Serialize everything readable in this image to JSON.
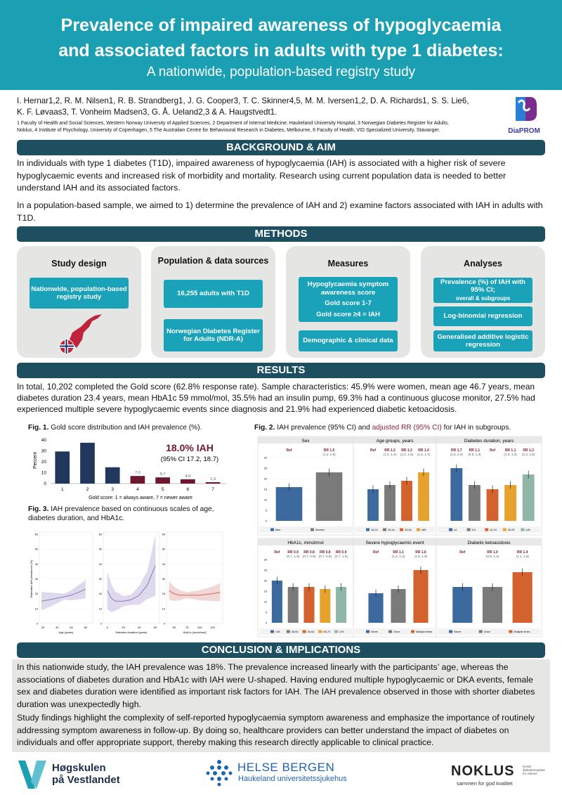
{
  "header": {
    "title_line1": "Prevalence of impaired awareness of hypoglycaemia",
    "title_line2": "and associated factors in adults with type 1 diabetes:",
    "subtitle": "A nationwide, population-based registry study"
  },
  "authors": {
    "line1": "I. Hernar1,2, R. M. Nilsen1, R. B. Strandberg1, J. G. Cooper3, T. C. Skinner4,5, M. M. Iversen1,2, D. A. Richards1, S. S. Lie6,",
    "line2": "K. F. Løvaas3, T. Vonheim Madsen3, G. Å. Ueland2,3 & A. Haugstvedt1."
  },
  "affiliations": {
    "line1": "1 Faculty of Health and Social Sciences, Western Norway University of Applied Sciences, 2 Department of Internal Medicine, Haukeland University Hospital, 3 Norwegian Diabetes Register for Adults,",
    "line2": "Noklus, 4 Institute of Psychology, University of Copenhagen, 5 The Australian Centre for Behavioural Research in Diabetes, Melbourne, 6 Faculty of Health, VID Specialized University, Stavanger."
  },
  "logo": {
    "diaprom": "DiaPROM"
  },
  "background": {
    "title": "BACKGROUND & AIM",
    "p1": "In individuals with type 1 diabetes (T1D), impaired awareness of hypoglycaemia (IAH) is associated with a higher risk of severe hypoglycaemic events and increased risk of morbidity and mortality. Research using current population data is needed to better understand IAH and its associated factors.",
    "p2": "In a population-based sample, we aimed to 1) determine the prevalence of IAH and 2) examine factors associated with IAH in adults with T1D."
  },
  "methods": {
    "title": "METHODS",
    "design": {
      "title": "Study design",
      "box": "Nationwide, population-based registry study"
    },
    "population": {
      "title": "Population & data sources",
      "box1": "16,255 adults with T1D",
      "box2": "Norwegian Diabetes Register for Adults (NDR-A)"
    },
    "measures": {
      "title": "Measures",
      "b1a": "Hypoglycaemia symptom awareness score",
      "b1b": "Gold score 1-7",
      "b1c": "Gold score ≥4 = IAH",
      "b2": "Demographic & clinical data"
    },
    "analyses": {
      "title": "Analyses",
      "b1": "Prevalence (%) of IAH with 95% CI;",
      "b1s": "overall & subgroups",
      "b2": "Log-binomial regression",
      "b3": "Generalised additive logistic regression"
    }
  },
  "results": {
    "title": "RESULTS",
    "text": "In total, 10,202 completed the Gold score (62.8% response rate). Sample characteristics: 45.9% were women, mean age 46.7 years, mean diabetes duration 23.4 years, mean HbA1c 59 mmol/mol, 35.5% had an insulin pump, 69.3% had a continuous glucose monitor, 27.5% had experienced multiple severe hypoglycaemic events since diagnosis and 21.9% had experienced diabetic ketoacidosis."
  },
  "fig1": {
    "caption_bold": "Fig. 1.",
    "caption": "Gold score distribution and IAH prevalence (%).",
    "headline": "18.0% IAH",
    "ci": "(95% CI 17.2, 18.7)",
    "xlabel": "Gold score: 1 = always aware, 7 = newer aware",
    "ylabel": "Percent"
  },
  "fig2": {
    "caption_bold": "Fig. 2.",
    "caption": "IAH prevalence (95% CI) and",
    "caption_red": "adjusted RR (95% CI)",
    "caption_end": "for IAH in subgroups."
  },
  "fig3": {
    "caption_bold": "Fig. 3.",
    "caption": "IAH prevalence based on continuous scales of age, diabetes duration, and HbA1c."
  },
  "chart_data": [
    {
      "type": "bar",
      "title": "Gold score distribution",
      "categories": [
        "1",
        "2",
        "3",
        "4",
        "5",
        "6",
        "7"
      ],
      "values": [
        29.5,
        37.5,
        15,
        7.0,
        5.7,
        4.0,
        1.3
      ],
      "labels": [
        "",
        "",
        "",
        "7.0",
        "5.7",
        "4.0",
        "1.3"
      ],
      "ylim": [
        0,
        40
      ],
      "yticks": [
        "0",
        "10",
        "20",
        "30",
        "40"
      ],
      "colors": [
        "#22375e",
        "#22375e",
        "#22375e",
        "#6e1830",
        "#6e1830",
        "#6e1830",
        "#6e1830"
      ]
    },
    {
      "type": "bar",
      "title": "Sex",
      "categories": [
        "Men",
        "Women"
      ],
      "values": [
        16,
        23
      ],
      "rr": [
        "Ref",
        "RR 1.5"
      ],
      "ci": [
        "",
        "(1.4, 1.6)"
      ],
      "colors": [
        "#3d6a9e",
        "#7a7a7a"
      ]
    },
    {
      "type": "bar",
      "title": "Age groups, years",
      "categories": [
        "18-24",
        "25-44",
        "45-64",
        "≥65"
      ],
      "values": [
        15,
        17,
        19,
        23
      ],
      "rr": [
        "Ref",
        "RR 1.2",
        "RR 1.2",
        "RR 1.4"
      ],
      "ci": [
        "",
        "(1.0, 1.4)",
        "(1.0, 1.5)",
        "(1.2, 1.7)"
      ],
      "colors": [
        "#3d6a9e",
        "#7a7a7a",
        "#d3622e",
        "#e6a22c"
      ]
    },
    {
      "type": "bar",
      "title": "Diabetes duration, years",
      "categories": [
        "≤4",
        "5-9",
        "10-19",
        "20-29",
        "≥30"
      ],
      "values": [
        25,
        17,
        15,
        17,
        22
      ],
      "rr": [
        "RR 1.7",
        "RR 1.1",
        "Ref",
        "RR 1.1",
        "RR 1.3"
      ],
      "ci": [
        "(1.5, 2.0)",
        "(0.9, 1.3)",
        "",
        "(1.0, 1.3)",
        "(1.2, 1.5)"
      ],
      "colors": [
        "#3d6a9e",
        "#7a7a7a",
        "#d3622e",
        "#e6a22c",
        "#8fb6a8"
      ]
    },
    {
      "type": "bar",
      "title": "HbA1c, mmol/mol",
      "categories": [
        "<48",
        "48-53",
        "54-64",
        "65-74",
        "≥75"
      ],
      "values": [
        20,
        17,
        17,
        16,
        17
      ],
      "rr": [
        "Ref",
        "RR 0.9",
        "RR 0.8",
        "RR 0.8",
        "RR 0.9"
      ],
      "ci": [
        "",
        "(0.7, 1.0)",
        "(0.7, 0.9)",
        "(0.7, 0.9)",
        "(0.7, 1.0)"
      ],
      "colors": [
        "#3d6a9e",
        "#7a7a7a",
        "#d3622e",
        "#e6a22c",
        "#8fb6a8"
      ]
    },
    {
      "type": "bar",
      "title": "Severe hypoglycaemic event",
      "categories": [
        "Never",
        "Once",
        "Multiple times"
      ],
      "values": [
        14,
        16,
        25
      ],
      "rr": [
        "Ref",
        "RR 1.1",
        "RR 1.6"
      ],
      "ci": [
        "",
        "(1.0, 1.3)",
        "(1.5, 1.8)"
      ],
      "colors": [
        "#3d6a9e",
        "#7a7a7a",
        "#d3622e"
      ]
    },
    {
      "type": "bar",
      "title": "Diabetic ketoacidosis",
      "categories": [
        "Never",
        "Once",
        "Multiple times"
      ],
      "values": [
        17,
        17,
        24
      ],
      "rr": [
        "Ref",
        "RR 1.0",
        "RR 1.4"
      ],
      "ci": [
        "",
        "(0.9, 1.1)",
        "(1.1, 1.6)"
      ],
      "colors": [
        "#3d6a9e",
        "#7a7a7a",
        "#d3622e"
      ]
    },
    {
      "type": "line",
      "title": "Age (years)",
      "x": [
        18,
        30,
        40,
        50,
        60,
        70,
        80
      ],
      "y": [
        15,
        16,
        17,
        18,
        19,
        21,
        23
      ],
      "xticks": [
        "20",
        "40",
        "60",
        "80"
      ],
      "yticks": [
        "0",
        "10",
        "20",
        "30",
        "40",
        "50",
        "60"
      ],
      "ylabel": "Estimated IAH prevalence (%)"
    },
    {
      "type": "line",
      "title": "Diabetes duration (years)",
      "x": [
        0,
        5,
        10,
        20,
        30,
        40,
        50,
        60
      ],
      "y": [
        22,
        17,
        15,
        15,
        16,
        19,
        26,
        39
      ],
      "xticks": [
        "0",
        "20",
        "40",
        "60"
      ]
    },
    {
      "type": "line",
      "title": "HbA1c (mmol/mol)",
      "x": [
        40,
        50,
        60,
        75,
        100,
        125,
        140
      ],
      "y": [
        22,
        20,
        19,
        19,
        19,
        20,
        21
      ],
      "xticks": [
        "50",
        "75",
        "100",
        "125"
      ]
    }
  ],
  "conclusion": {
    "title": "CONCLUSION & IMPLICATIONS",
    "p1": "In this nationwide study, the IAH prevalence was 18%. The prevalence increased linearly with the participants’ age, whereas the associations of diabetes duration and HbA1c with IAH were U-shaped. Having endured multiple hypoglycaemic or DKA events, female sex and diabetes duration were identified as important risk factors for IAH. The IAH prevalence observed in those with shorter diabetes duration was unexpectedly high.",
    "p2": "Study findings highlight the complexity of self-reported hypoglycaemia symptom awareness and emphasize the importance of routinely addressing symptom awareness in follow-up. By doing so, healthcare providers can better understand the impact of diabetes on individuals and offer appropriate support, thereby making this research directly applicable to clinical practice."
  },
  "footer": {
    "hvl1": "Høgskulen",
    "hvl2": "på Vestlandet",
    "hb1": "HELSE BERGEN",
    "hb2": "Haukeland universitetssjukehus",
    "noklus": "NOKLUS",
    "noklus_sub": "sammen for god kvalitet",
    "noklus_small": "Norsk diabetesregister for voksne"
  }
}
